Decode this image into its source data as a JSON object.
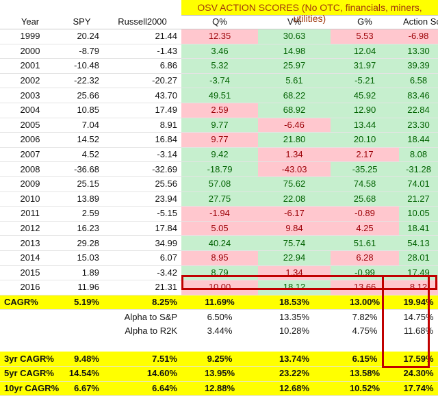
{
  "title": "OSV ACTION SCORES (No OTC, financials, miners, utilities)",
  "headers": [
    "Year",
    "SPY",
    "Russell2000",
    "Q%",
    "V%",
    "G%",
    "Action Score%"
  ],
  "colors": {
    "positive_bg": "#c6efce",
    "positive_text": "#006100",
    "negative_bg": "#ffc7ce",
    "negative_text": "#9c0006",
    "highlight": "#ffff00",
    "outline": "#c00000",
    "title_text": "#a0380c"
  },
  "rows": [
    {
      "year": "1999",
      "spy": "20.24",
      "r2k": "21.44",
      "q": "12.35",
      "v": "30.63",
      "g": "5.53",
      "a": "-6.98",
      "qs": "neg",
      "vs": "pos",
      "gs": "neg",
      "as": "neg"
    },
    {
      "year": "2000",
      "spy": "-8.79",
      "r2k": "-1.43",
      "q": "3.46",
      "v": "14.98",
      "g": "12.04",
      "a": "13.30",
      "qs": "pos",
      "vs": "pos",
      "gs": "pos",
      "as": "pos"
    },
    {
      "year": "2001",
      "spy": "-10.48",
      "r2k": "6.86",
      "q": "5.32",
      "v": "25.97",
      "g": "31.97",
      "a": "39.39",
      "qs": "pos",
      "vs": "pos",
      "gs": "pos",
      "as": "pos"
    },
    {
      "year": "2002",
      "spy": "-22.32",
      "r2k": "-20.27",
      "q": "-3.74",
      "v": "5.61",
      "g": "-5.21",
      "a": "6.58",
      "qs": "pos",
      "vs": "pos",
      "gs": "pos",
      "as": "pos"
    },
    {
      "year": "2003",
      "spy": "25.66",
      "r2k": "43.70",
      "q": "49.51",
      "v": "68.22",
      "g": "45.92",
      "a": "83.46",
      "qs": "pos",
      "vs": "pos",
      "gs": "pos",
      "as": "pos"
    },
    {
      "year": "2004",
      "spy": "10.85",
      "r2k": "17.49",
      "q": "2.59",
      "v": "68.92",
      "g": "12.90",
      "a": "22.84",
      "qs": "neg",
      "vs": "pos",
      "gs": "pos",
      "as": "pos"
    },
    {
      "year": "2005",
      "spy": "7.04",
      "r2k": "8.91",
      "q": "9.77",
      "v": "-6.46",
      "g": "13.44",
      "a": "23.30",
      "qs": "pos",
      "vs": "neg",
      "gs": "pos",
      "as": "pos"
    },
    {
      "year": "2006",
      "spy": "14.52",
      "r2k": "16.84",
      "q": "9.77",
      "v": "21.80",
      "g": "20.10",
      "a": "18.44",
      "qs": "neg",
      "vs": "pos",
      "gs": "pos",
      "as": "pos"
    },
    {
      "year": "2007",
      "spy": "4.52",
      "r2k": "-3.14",
      "q": "9.42",
      "v": "1.34",
      "g": "2.17",
      "a": "8.08",
      "qs": "pos",
      "vs": "neg",
      "gs": "neg",
      "as": "pos"
    },
    {
      "year": "2008",
      "spy": "-36.68",
      "r2k": "-32.69",
      "q": "-18.79",
      "v": "-43.03",
      "g": "-35.25",
      "a": "-31.28",
      "qs": "pos",
      "vs": "neg",
      "gs": "pos",
      "as": "pos"
    },
    {
      "year": "2009",
      "spy": "25.15",
      "r2k": "25.56",
      "q": "57.08",
      "v": "75.62",
      "g": "74.58",
      "a": "74.01",
      "qs": "pos",
      "vs": "pos",
      "gs": "pos",
      "as": "pos"
    },
    {
      "year": "2010",
      "spy": "13.89",
      "r2k": "23.94",
      "q": "27.75",
      "v": "22.08",
      "g": "25.68",
      "a": "21.27",
      "qs": "pos",
      "vs": "pos",
      "gs": "pos",
      "as": "pos"
    },
    {
      "year": "2011",
      "spy": "2.59",
      "r2k": "-5.15",
      "q": "-1.94",
      "v": "-6.17",
      "g": "-0.89",
      "a": "10.05",
      "qs": "neg",
      "vs": "neg",
      "gs": "neg",
      "as": "pos"
    },
    {
      "year": "2012",
      "spy": "16.23",
      "r2k": "17.84",
      "q": "5.05",
      "v": "9.84",
      "g": "4.25",
      "a": "18.41",
      "qs": "neg",
      "vs": "neg",
      "gs": "neg",
      "as": "pos"
    },
    {
      "year": "2013",
      "spy": "29.28",
      "r2k": "34.99",
      "q": "40.24",
      "v": "75.74",
      "g": "51.61",
      "a": "54.13",
      "qs": "pos",
      "vs": "pos",
      "gs": "pos",
      "as": "pos"
    },
    {
      "year": "2014",
      "spy": "15.03",
      "r2k": "6.07",
      "q": "8.95",
      "v": "22.94",
      "g": "6.28",
      "a": "28.01",
      "qs": "neg",
      "vs": "pos",
      "gs": "neg",
      "as": "pos"
    },
    {
      "year": "2015",
      "spy": "1.89",
      "r2k": "-3.42",
      "q": "8.79",
      "v": "1.34",
      "g": "-0.99",
      "a": "17.49",
      "qs": "pos",
      "vs": "neg",
      "gs": "pos",
      "as": "pos"
    },
    {
      "year": "2016",
      "spy": "11.96",
      "r2k": "21.31",
      "q": "10.00",
      "v": "18.12",
      "g": "13.66",
      "a": "8.12",
      "qs": "neg",
      "vs": "pos",
      "gs": "neg",
      "as": "neg"
    }
  ],
  "cagr": {
    "label": "CAGR%",
    "spy": "5.19%",
    "r2k": "8.25%",
    "q": "11.69%",
    "v": "18.53%",
    "g": "13.00%",
    "a": "19.94%"
  },
  "alpha": [
    {
      "label": "Alpha to S&P",
      "q": "6.50%",
      "v": "13.35%",
      "g": "7.82%",
      "a": "14.75%"
    },
    {
      "label": "Alpha to R2K",
      "q": "3.44%",
      "v": "10.28%",
      "g": "4.75%",
      "a": "11.68%"
    }
  ],
  "period_cagr": [
    {
      "label": "3yr CAGR%",
      "spy": "9.48%",
      "r2k": "7.51%",
      "q": "9.25%",
      "v": "13.74%",
      "g": "6.15%",
      "a": "17.59%"
    },
    {
      "label": "5yr CAGR%",
      "spy": "14.54%",
      "r2k": "14.60%",
      "q": "13.95%",
      "v": "23.22%",
      "g": "13.58%",
      "a": "24.30%"
    },
    {
      "label": "10yr CAGR%",
      "spy": "6.67%",
      "r2k": "6.64%",
      "q": "12.88%",
      "v": "12.68%",
      "g": "10.52%",
      "a": "17.74%"
    }
  ]
}
